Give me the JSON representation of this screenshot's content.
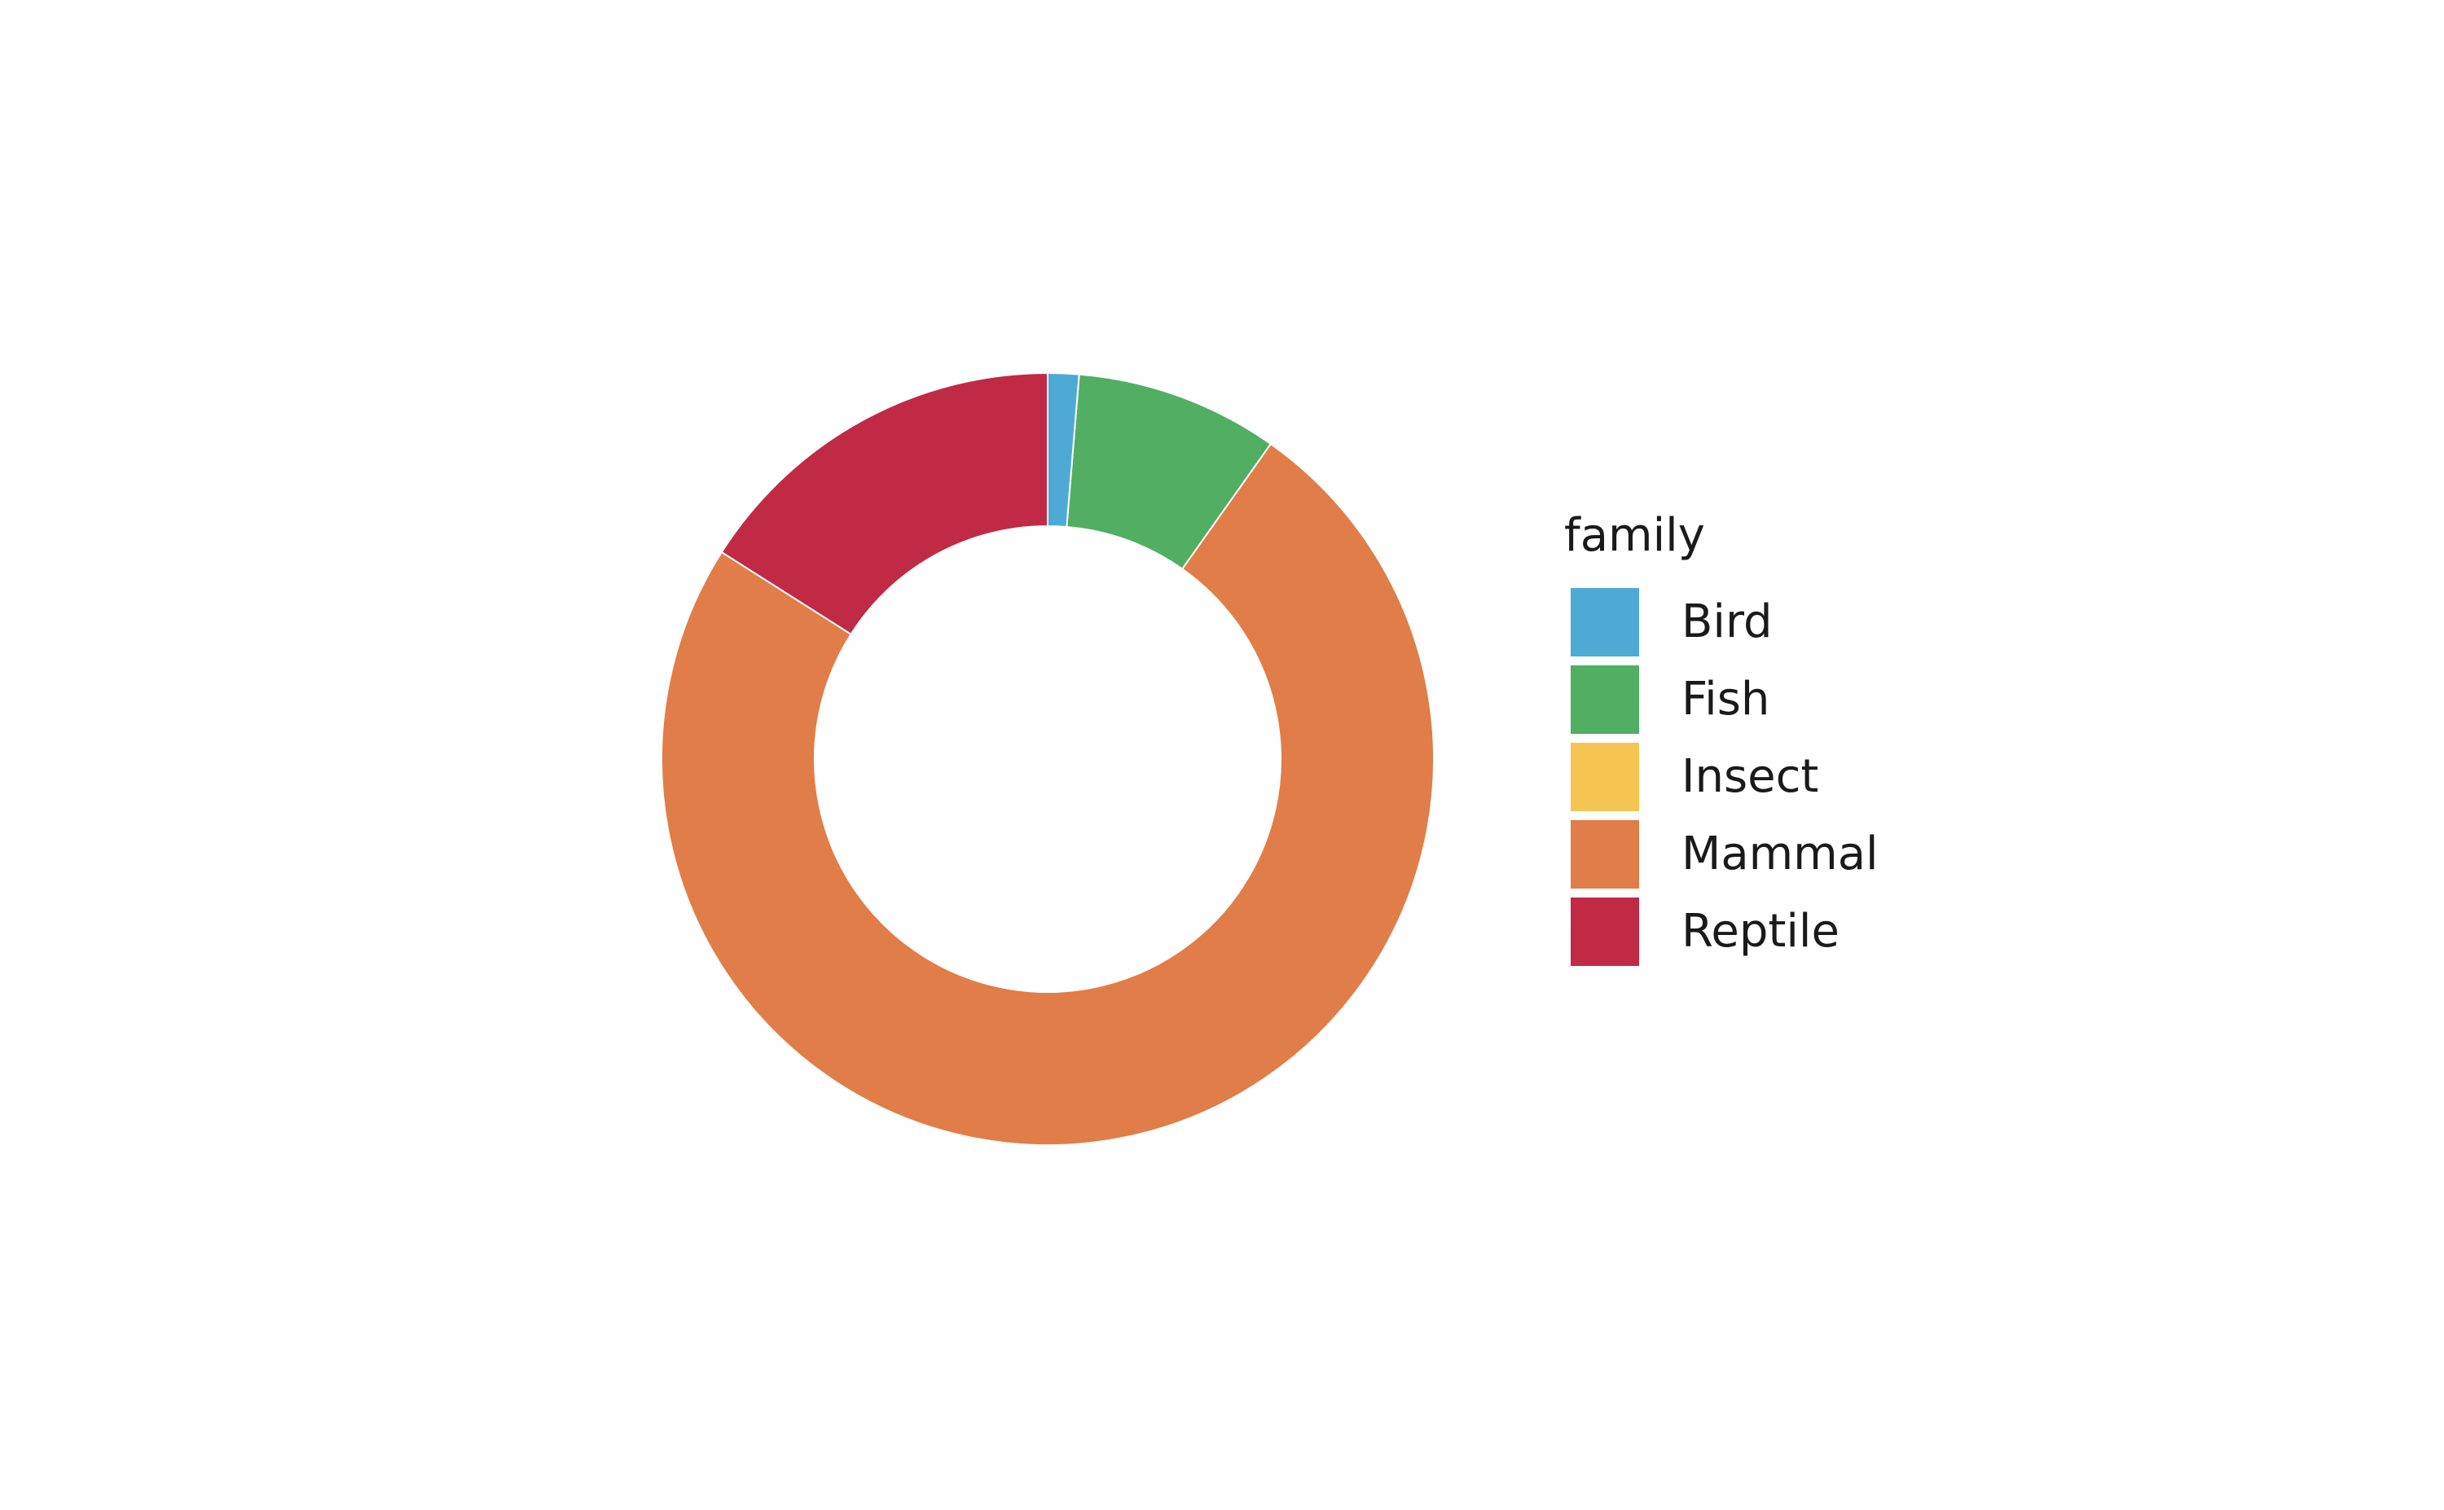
{
  "chart_data": {
    "type": "pie",
    "donut": true,
    "legend_title": "family",
    "legend_position": "right",
    "start": "top",
    "direction": "counterclockwise",
    "slices": [
      {
        "label": "Reptile",
        "value": 16.0,
        "color": "#c02a45"
      },
      {
        "label": "Mammal",
        "value": 74.2,
        "color": "#e07d48"
      },
      {
        "label": "Insect",
        "value": 0.0,
        "color": "#f5c451"
      },
      {
        "label": "Fish",
        "value": 8.5,
        "color": "#52ae62"
      },
      {
        "label": "Bird",
        "value": 1.3,
        "color": "#4eaad5"
      }
    ],
    "legend_order": [
      "Bird",
      "Fish",
      "Insect",
      "Mammal",
      "Reptile"
    ]
  }
}
